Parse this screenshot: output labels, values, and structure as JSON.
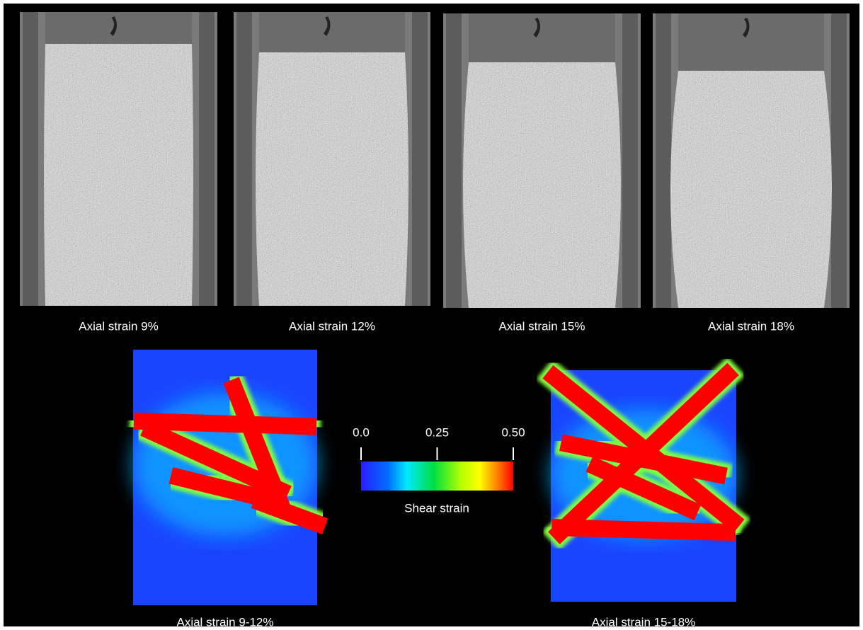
{
  "panels": [
    {
      "caption": "Axial strain 9%"
    },
    {
      "caption": "Axial strain 12%"
    },
    {
      "caption": "Axial strain 15%"
    },
    {
      "caption": "Axial strain 18%"
    }
  ],
  "strain_maps": [
    {
      "caption": "Axial strain 9-12%"
    },
    {
      "caption": "Axial strain 15-18%"
    }
  ],
  "colorbar": {
    "label": "Shear strain",
    "lim": [
      0,
      0.5
    ],
    "ticks": [
      {
        "value": 0,
        "label": "0.0"
      },
      0.25,
      {
        "value": 0.5,
        "label": "0.50"
      }
    ]
  }
}
